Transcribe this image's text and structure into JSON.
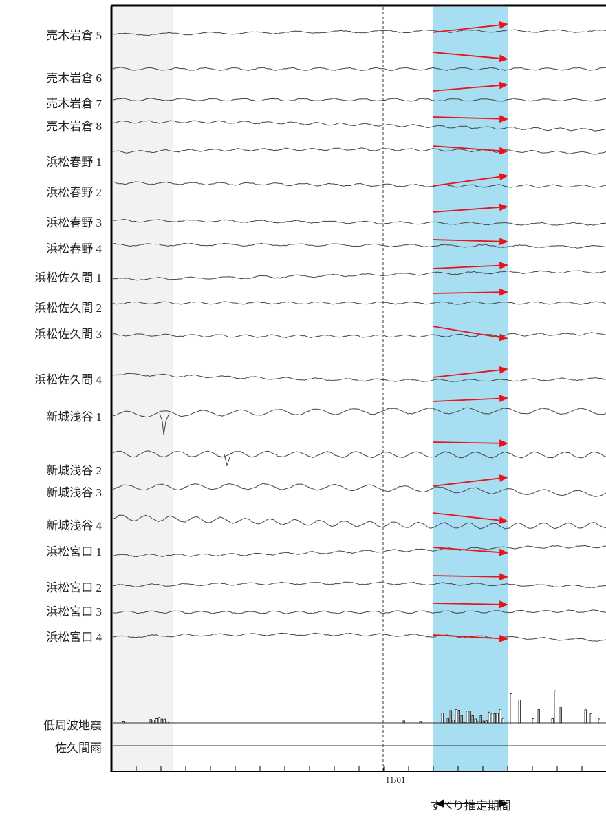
{
  "figure": {
    "stations": [
      "売木岩倉 5",
      "売木岩倉 6",
      "売木岩倉 7",
      "売木岩倉 8",
      "浜松春野 1",
      "浜松春野 2",
      "浜松春野 3",
      "浜松春野 4",
      "浜松佐久間 1",
      "浜松佐久間 2",
      "浜松佐久間 3",
      "浜松佐久間 4",
      "新城浅谷 1",
      "新城浅谷 2",
      "新城浅谷 3",
      "新城浅谷 4",
      "浜松宮口 1",
      "浜松宮口 2",
      "浜松宮口 3",
      "浜松宮口 4"
    ],
    "extra_tracks": [
      "低周波地震",
      "佐久間雨"
    ],
    "x_tick": "11/01",
    "slip_period_label": "すべり推定期間"
  }
}
